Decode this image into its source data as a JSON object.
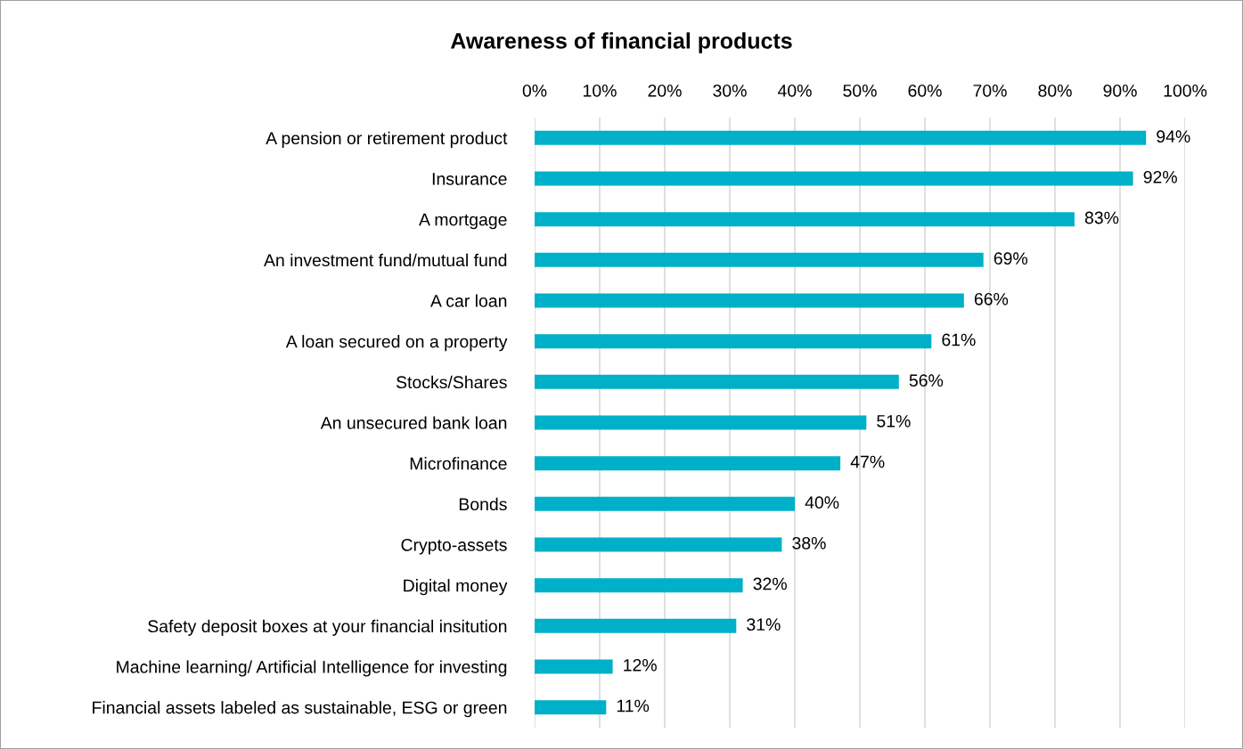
{
  "chart_data": {
    "type": "bar",
    "orientation": "horizontal",
    "title": "Awareness of financial products",
    "categories": [
      "A pension or retirement product",
      "Insurance",
      "A mortgage",
      "An investment fund/mutual fund",
      "A car loan",
      "A loan secured on a property",
      "Stocks/Shares",
      "An unsecured bank loan",
      "Microfinance",
      "Bonds",
      "Crypto-assets",
      "Digital money",
      "Safety deposit boxes at your financial insitution",
      "Machine learning/ Artificial Intelligence for investing",
      "Financial assets labeled as sustainable, ESG or green"
    ],
    "values": [
      94,
      92,
      83,
      69,
      66,
      61,
      56,
      51,
      47,
      40,
      38,
      32,
      31,
      12,
      11
    ],
    "value_labels": [
      "94%",
      "92%",
      "83%",
      "69%",
      "66%",
      "61%",
      "56%",
      "51%",
      "47%",
      "40%",
      "38%",
      "32%",
      "31%",
      "12%",
      "11%"
    ],
    "color": "#00b0c8",
    "xlim": [
      0,
      100
    ],
    "xticks": [
      {
        "value": 0,
        "label": "0%"
      },
      {
        "value": 10,
        "label": "10%"
      },
      {
        "value": 20,
        "label": "20%"
      },
      {
        "value": 30,
        "label": "30%"
      },
      {
        "value": 40,
        "label": "40%"
      },
      {
        "value": 50,
        "label": "50%"
      },
      {
        "value": 60,
        "label": "60%"
      },
      {
        "value": 70,
        "label": "70%"
      },
      {
        "value": 80,
        "label": "80%"
      },
      {
        "value": 90,
        "label": "90%"
      },
      {
        "value": 100,
        "label": "100%"
      }
    ],
    "grid": "x",
    "legend": false
  }
}
